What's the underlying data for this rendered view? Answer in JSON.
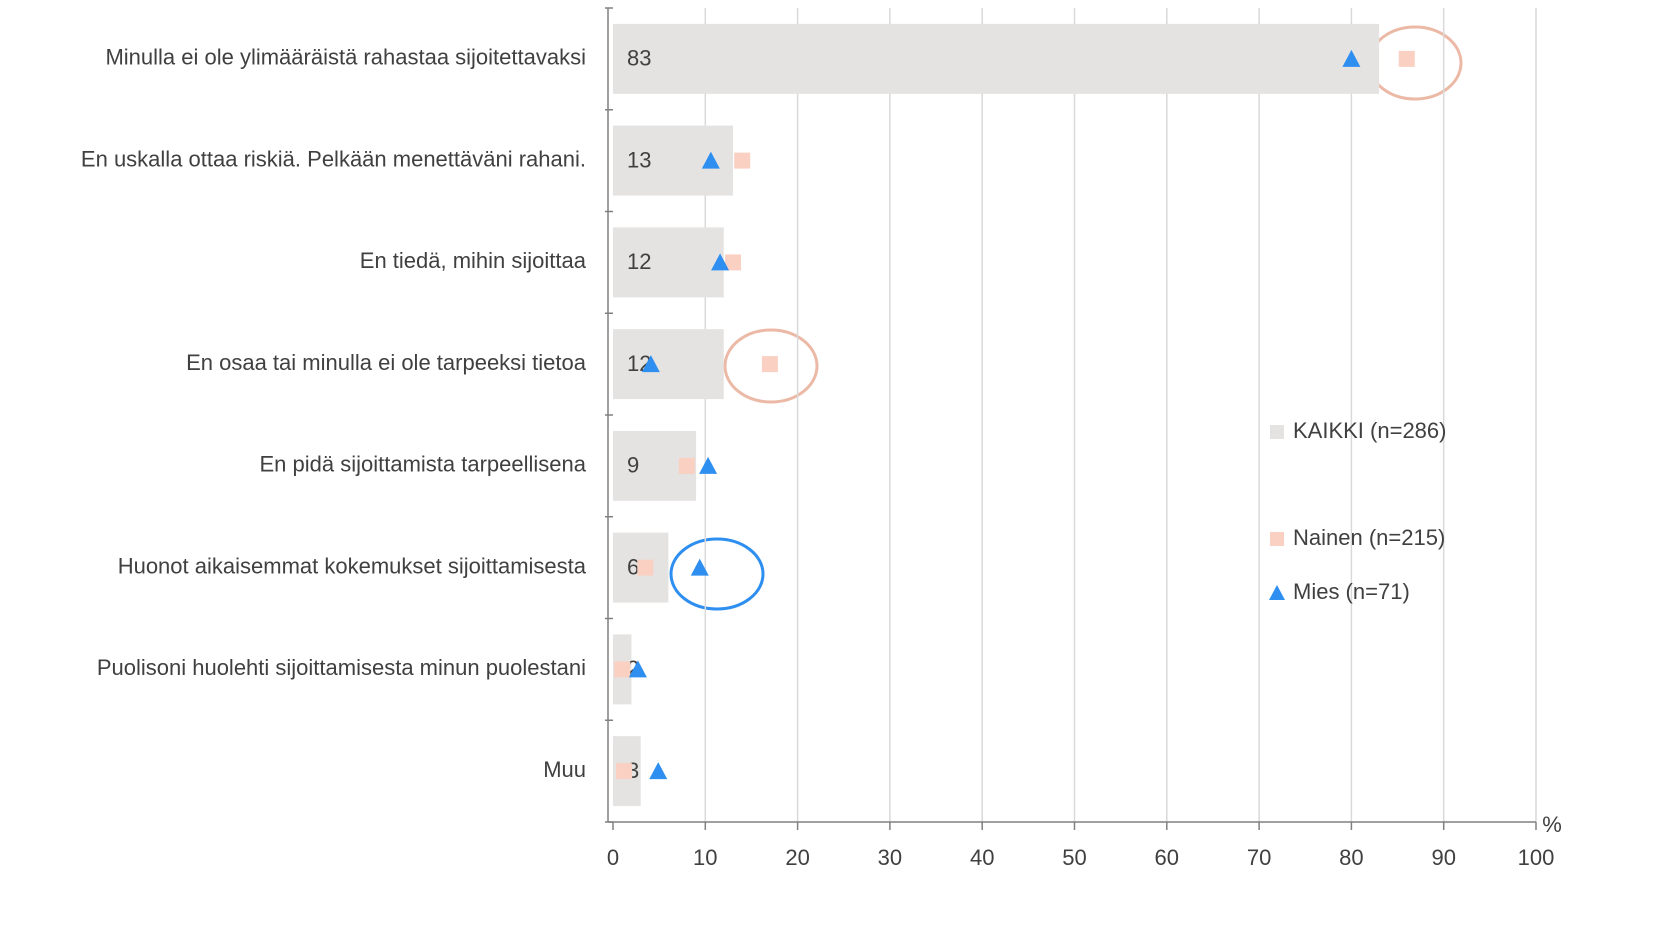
{
  "chart_data": {
    "type": "bar",
    "categories": [
      "Minulla ei ole ylimääräistä rahastaa sijoitettavaksi",
      "En uskalla ottaa riskiä. Pelkään menettäväni rahani.",
      "En tiedä, mihin sijoittaa",
      "En osaa tai minulla ei ole tarpeeksi tietoa",
      "En pidä sijoittamista tarpeellisena",
      "Huonot aikaisemmat kokemukset sijoittamisesta",
      "Puolisoni huolehti sijoittamisesta minun puolestani",
      "Muu"
    ],
    "series": [
      {
        "name": "KAIKKI (n=286)",
        "color": "#e5e3e2",
        "marker": "bar",
        "values": [
          83,
          13,
          12,
          12,
          9,
          6,
          2,
          3
        ]
      },
      {
        "name": "Nainen (n=215)",
        "color": "#f9d0c1",
        "marker": "square",
        "values": [
          86,
          14,
          13,
          17,
          8,
          3.5,
          1,
          1.2
        ]
      },
      {
        "name": "Mies (n=71)",
        "color": "#2e8ff0",
        "marker": "triangle",
        "values": [
          80,
          10.6,
          11.6,
          4.1,
          10.3,
          9.4,
          2.7,
          4.9
        ]
      }
    ],
    "xlabel": "%",
    "xlim": [
      0,
      100
    ],
    "xticks": [
      0,
      10,
      20,
      30,
      40,
      50,
      60,
      70,
      80,
      90,
      100
    ],
    "grid": true,
    "legend": "right"
  }
}
